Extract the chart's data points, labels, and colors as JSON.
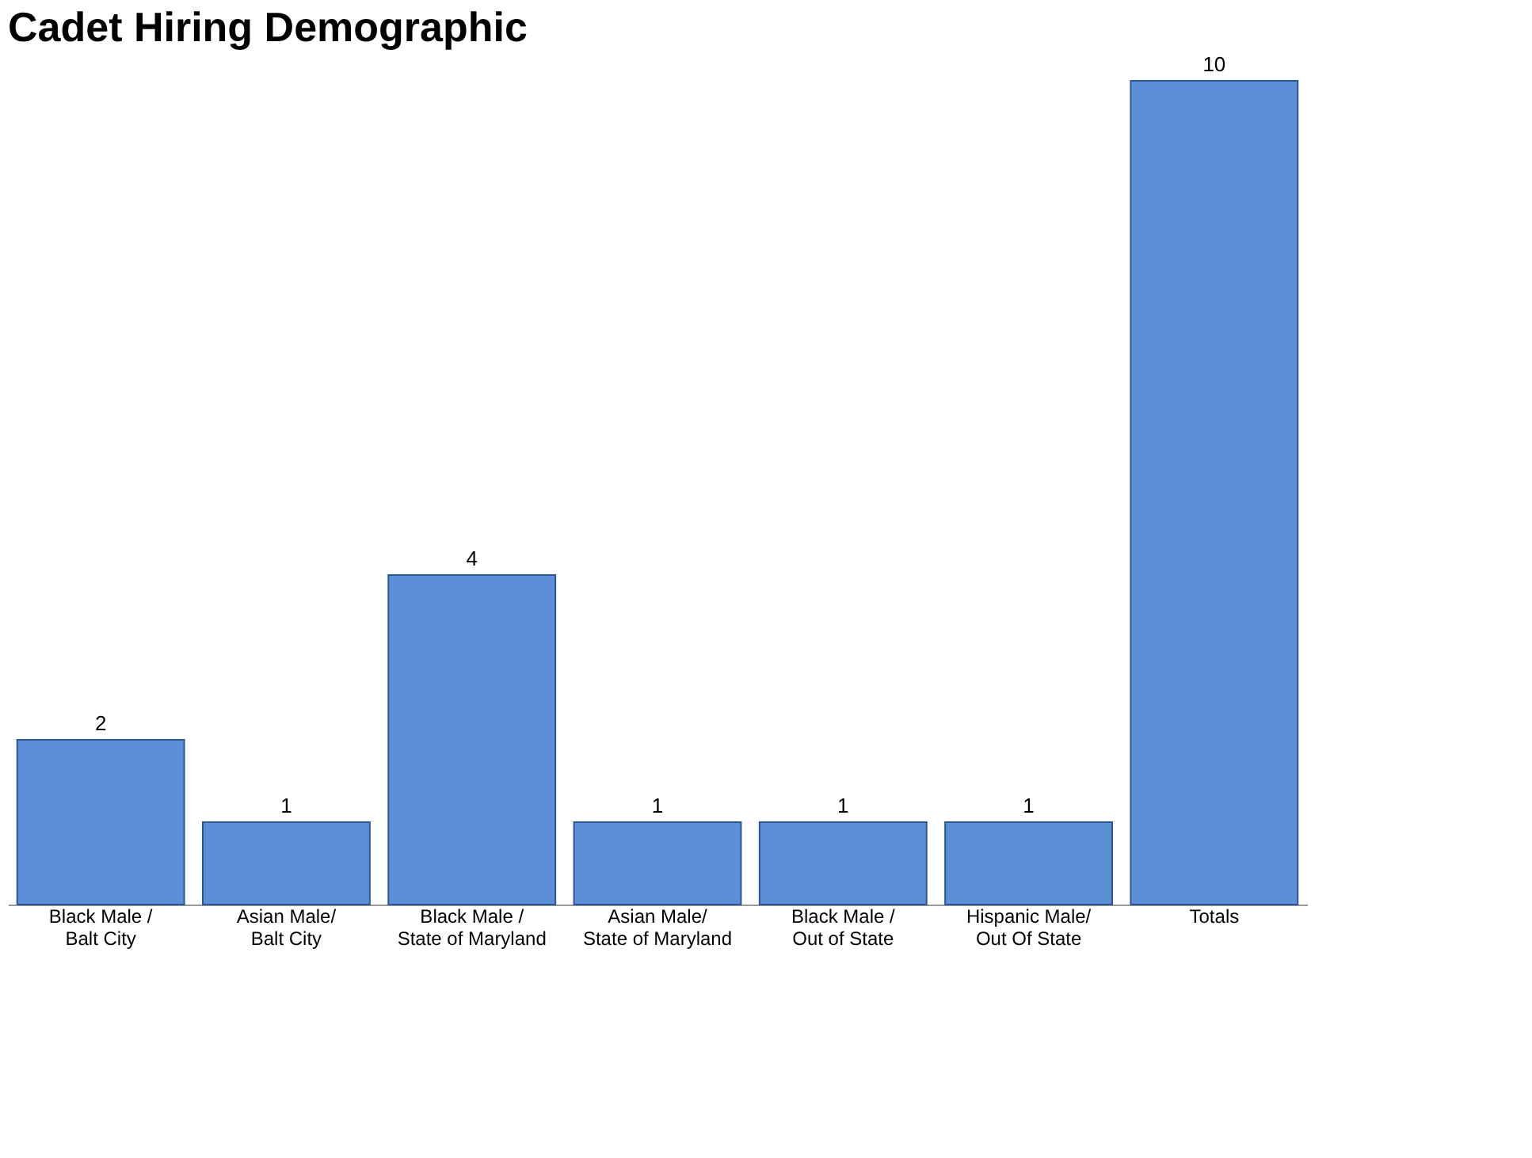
{
  "chart_data": {
    "type": "bar",
    "title": "Cadet Hiring Demographic",
    "categories": [
      "Black Male / Balt City",
      "Asian Male/ Balt City",
      "Black Male / State of Maryland",
      "Asian Male/ State of Maryland",
      "Black Male / Out of State",
      "Hispanic Male/ Out Of State",
      "Totals"
    ],
    "values": [
      2,
      1,
      4,
      1,
      1,
      1,
      10
    ],
    "color": "#5b8fd6",
    "data_labels": true
  }
}
